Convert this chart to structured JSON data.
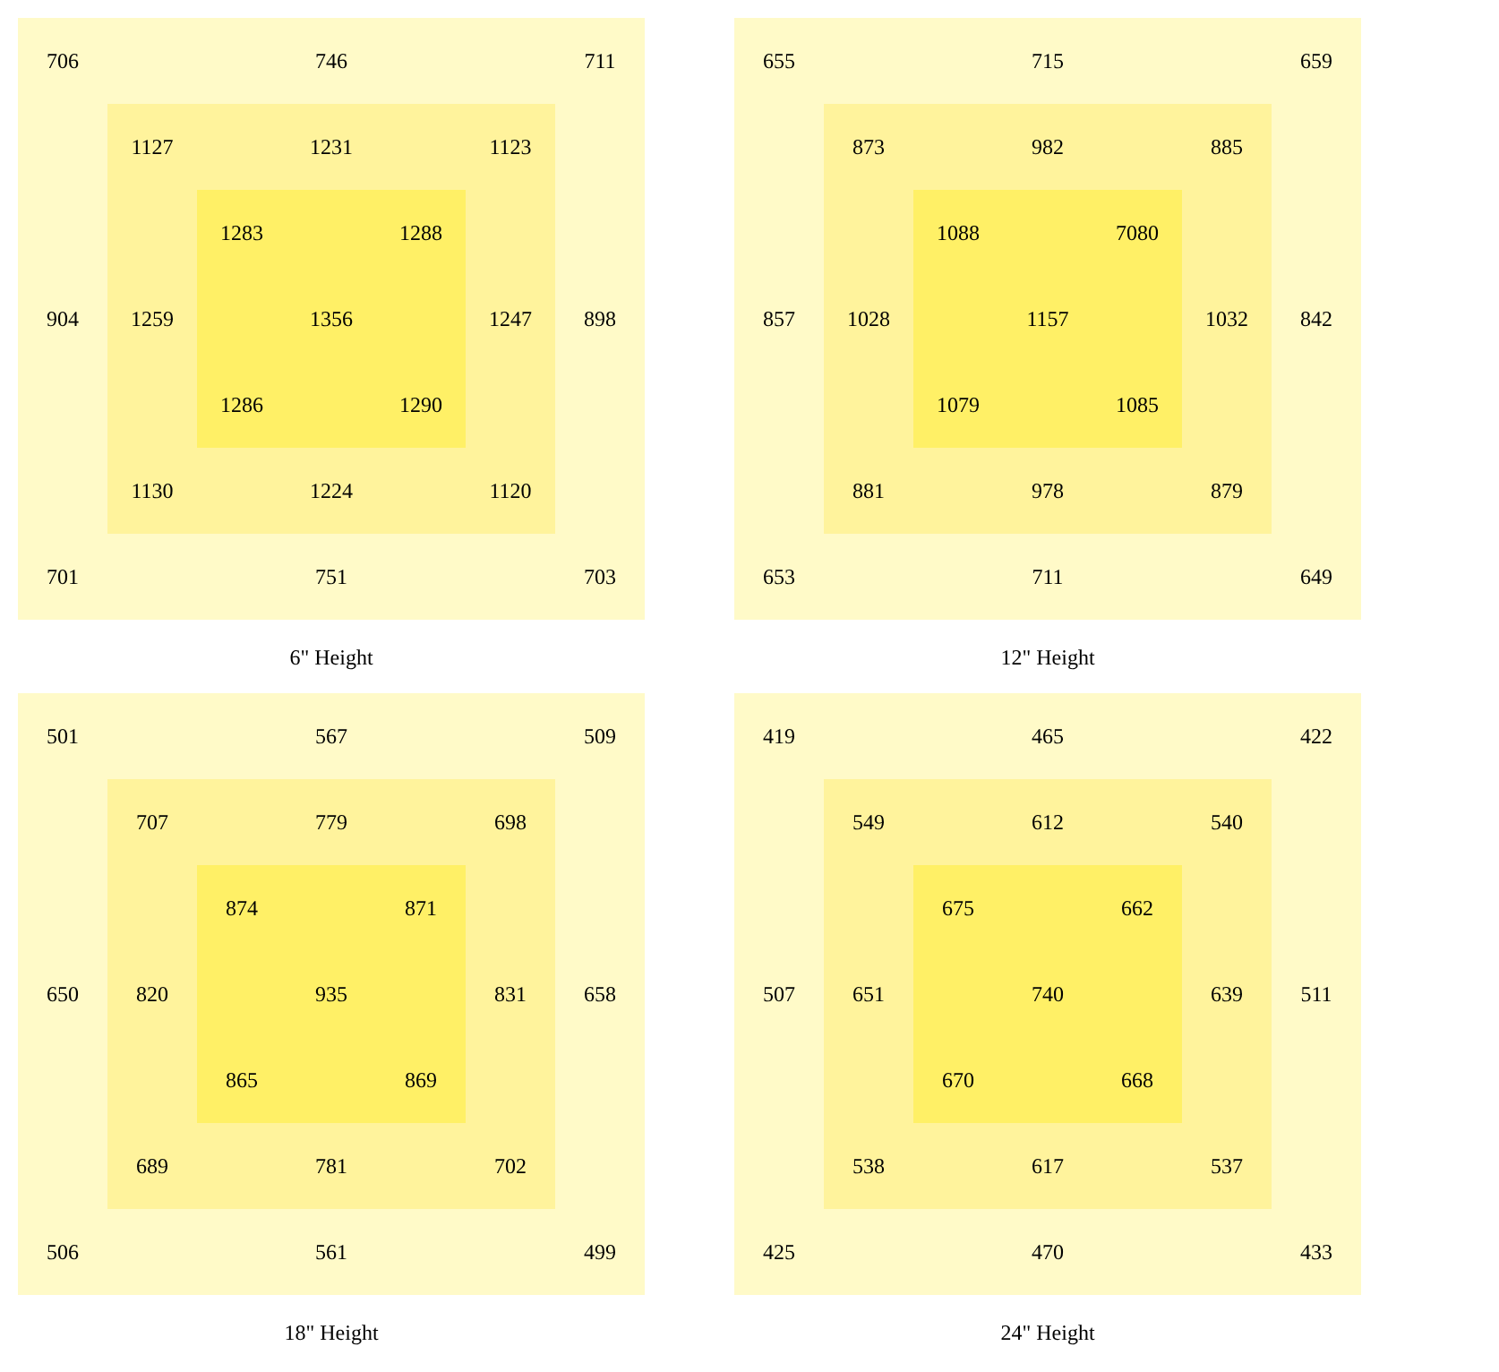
{
  "chart_data": [
    {
      "type": "other",
      "title": "6\" Height",
      "data_labels": true,
      "values": [
        706,
        746,
        711,
        1127,
        1231,
        1123,
        1283,
        1288,
        904,
        1259,
        1356,
        1247,
        898,
        1286,
        1290,
        1130,
        1224,
        1120,
        701,
        751,
        703
      ]
    },
    {
      "type": "other",
      "title": "12\" Height",
      "data_labels": true,
      "values": [
        655,
        715,
        659,
        873,
        982,
        885,
        1088,
        7080,
        857,
        1028,
        1157,
        1032,
        842,
        1079,
        1085,
        881,
        978,
        879,
        653,
        711,
        649
      ]
    },
    {
      "type": "other",
      "title": "18\" Height",
      "data_labels": true,
      "values": [
        501,
        567,
        509,
        707,
        779,
        698,
        874,
        871,
        650,
        820,
        935,
        831,
        658,
        865,
        869,
        689,
        781,
        702,
        506,
        561,
        499
      ]
    },
    {
      "type": "other",
      "title": "24\" Height",
      "data_labels": true,
      "values": [
        419,
        465,
        422,
        549,
        612,
        540,
        675,
        662,
        507,
        651,
        740,
        639,
        511,
        670,
        668,
        538,
        617,
        537,
        425,
        470,
        433
      ]
    }
  ]
}
